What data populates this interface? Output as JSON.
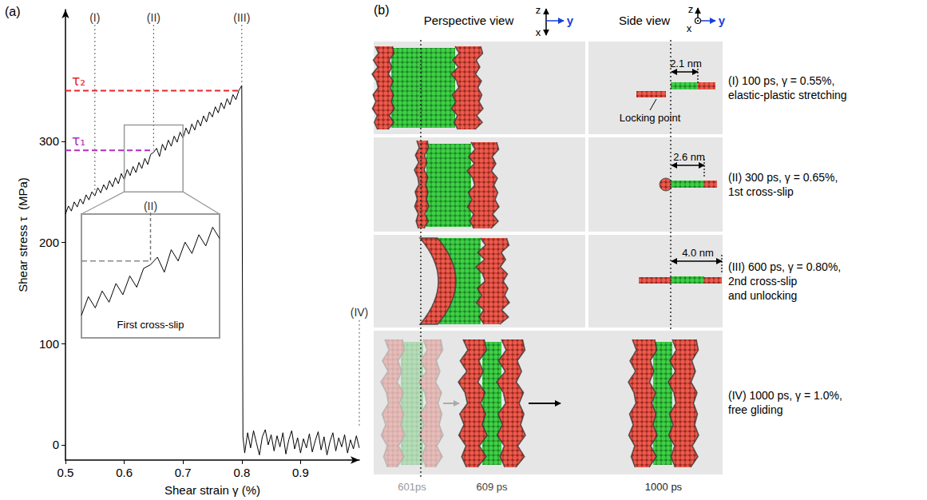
{
  "chart_data": [
    {
      "type": "line",
      "x_label": "Shear strain γ (%)",
      "y_label": "Shear stress τ  (MPa)",
      "xlim": [
        0.5,
        1.0
      ],
      "xticks": [
        0.5,
        0.6,
        0.7,
        0.8,
        0.9
      ],
      "ylim": [
        -15,
        430
      ],
      "yticks": [
        0,
        100,
        200,
        300
      ],
      "grid": false,
      "color": "#000000",
      "x": [
        0.5,
        0.505,
        0.51,
        0.515,
        0.52,
        0.525,
        0.53,
        0.535,
        0.54,
        0.545,
        0.55,
        0.555,
        0.56,
        0.565,
        0.57,
        0.575,
        0.58,
        0.585,
        0.59,
        0.595,
        0.6,
        0.605,
        0.61,
        0.615,
        0.62,
        0.625,
        0.63,
        0.635,
        0.64,
        0.645,
        0.65,
        0.655,
        0.66,
        0.665,
        0.67,
        0.675,
        0.68,
        0.685,
        0.69,
        0.695,
        0.7,
        0.705,
        0.71,
        0.715,
        0.72,
        0.725,
        0.73,
        0.735,
        0.74,
        0.745,
        0.75,
        0.755,
        0.76,
        0.765,
        0.77,
        0.775,
        0.78,
        0.785,
        0.79,
        0.795,
        0.8,
        0.802,
        0.805,
        0.81,
        0.815,
        0.82,
        0.825,
        0.83,
        0.835,
        0.84,
        0.845,
        0.85,
        0.855,
        0.86,
        0.865,
        0.87,
        0.875,
        0.88,
        0.885,
        0.89,
        0.895,
        0.9,
        0.905,
        0.91,
        0.915,
        0.92,
        0.925,
        0.93,
        0.935,
        0.94,
        0.945,
        0.95,
        0.955,
        0.96,
        0.965,
        0.97,
        0.975,
        0.98,
        0.985,
        0.99,
        0.995,
        1.0
      ],
      "values": [
        228,
        236,
        231,
        240,
        235,
        243,
        238,
        247,
        242,
        250,
        246,
        254,
        249,
        257,
        252,
        261,
        255,
        264,
        258,
        268,
        262,
        272,
        266,
        275,
        269,
        279,
        273,
        283,
        277,
        287,
        289,
        293,
        285,
        297,
        291,
        301,
        295,
        305,
        299,
        309,
        303,
        313,
        307,
        317,
        311,
        321,
        315,
        325,
        319,
        329,
        324,
        334,
        328,
        338,
        332,
        342,
        336,
        346,
        341,
        350,
        355,
        8,
        -8,
        12,
        -3,
        14,
        2,
        -10,
        8,
        15,
        0,
        10,
        -6,
        9,
        -2,
        12,
        -9,
        5,
        14,
        -4,
        7,
        -8,
        6,
        -3,
        11,
        -7,
        4,
        13,
        -5,
        8,
        -10,
        3,
        12,
        -6,
        7,
        -2,
        10,
        -8,
        5,
        -4,
        9,
        -3
      ],
      "reference_lines": [
        {
          "label": "τ₂",
          "y": 350,
          "x": [
            0.5,
            0.8
          ],
          "color": "#e8262a",
          "line_style": "dashed"
        },
        {
          "label": "τ₁",
          "y": 291,
          "x": [
            0.5,
            0.65
          ],
          "color": "#b22cc0",
          "line_style": "dashed"
        }
      ],
      "stages": [
        {
          "label": "(I)",
          "x": 0.55
        },
        {
          "label": "(II)",
          "x": 0.65
        },
        {
          "label": "(III)",
          "x": 0.8
        },
        {
          "label": "(IV)",
          "x": 1.0
        }
      ]
    },
    {
      "type": "line",
      "xlim": [
        0.6,
        0.7
      ],
      "ylim": [
        250,
        316
      ],
      "tick_labels": false,
      "grid": false,
      "color": "#000000",
      "x": [
        0.6,
        0.605,
        0.61,
        0.615,
        0.62,
        0.625,
        0.63,
        0.635,
        0.64,
        0.645,
        0.65,
        0.655,
        0.66,
        0.665,
        0.67,
        0.675,
        0.68,
        0.685,
        0.69,
        0.695,
        0.7
      ],
      "values": [
        262,
        272,
        266,
        275,
        269,
        279,
        273,
        283,
        277,
        287,
        289,
        293,
        285,
        297,
        291,
        301,
        295,
        305,
        299,
        309,
        303
      ],
      "annotation": "First cross-slip",
      "stage": {
        "label": "(II)",
        "x": 0.65
      },
      "reference_line": {
        "y": 291,
        "color": "#888888",
        "line_style": "dashed"
      }
    }
  ],
  "panel_labels": [
    "(a)",
    "(b)"
  ],
  "diagram": {
    "columns": [
      {
        "title": "Perspective view",
        "axes": {
          "up": "z",
          "down": "x",
          "right": "y"
        }
      },
      {
        "title": "Side view",
        "axes": {
          "up": "z",
          "out": "x",
          "right": "y"
        }
      }
    ],
    "rows": [
      {
        "caption": [
          "(I) 100 ps, γ = 0.55%,",
          "elastic-plastic stretching"
        ],
        "side_distance": "2.1 nm",
        "side_note": "Locking point"
      },
      {
        "caption": [
          "(II) 300 ps, γ = 0.65%,",
          "1st cross-slip"
        ],
        "side_distance": "2.6 nm"
      },
      {
        "caption": [
          "(III) 600 ps, γ = 0.80%,",
          "2nd cross-slip",
          "and unlocking"
        ],
        "side_distance": "4.0 nm"
      },
      {
        "caption": [
          "(IV) 1000 ps, γ = 1.0%,",
          "free gliding"
        ],
        "snapshots": [
          "601ps",
          "609 ps",
          "1000 ps"
        ]
      }
    ]
  }
}
